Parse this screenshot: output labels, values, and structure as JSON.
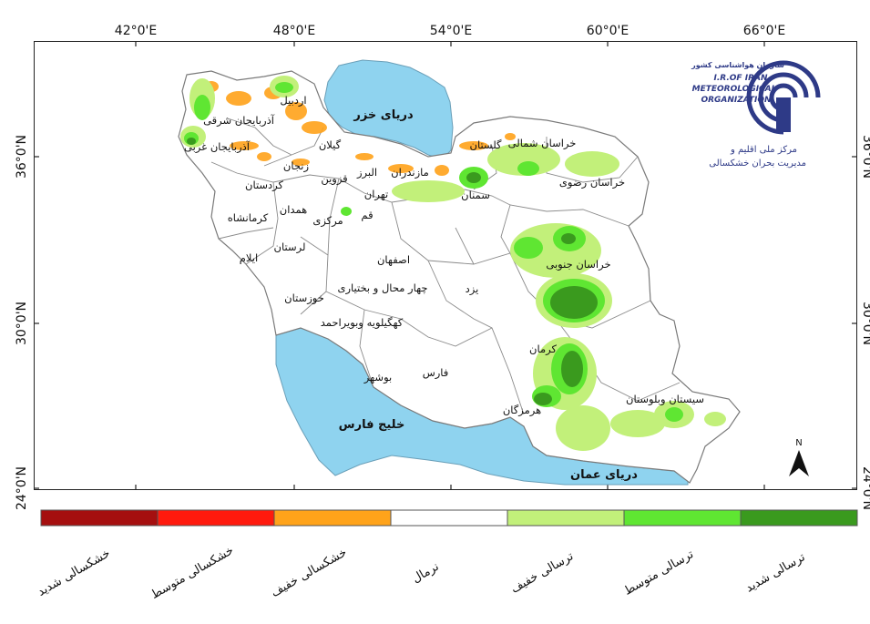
{
  "map": {
    "lon_ticks": [
      "42°0'E",
      "48°0'E",
      "54°0'E",
      "60°0'E",
      "66°0'E"
    ],
    "lat_ticks_left": [
      "36°0'N",
      "30°0'N",
      "24°0'N"
    ],
    "lat_ticks_right": [
      "36°0'N",
      "30°0'N",
      "24°0'N"
    ],
    "water_bodies": {
      "caspian": "دریای خزر",
      "persian_gulf": "خلیج فارس",
      "oman_sea": "دریای عمان"
    },
    "provinces": [
      "اردبیل",
      "آذربایجان شرقی",
      "آذربایجان غربی",
      "گیلان",
      "زنجان",
      "البرز",
      "قزوین",
      "مازندران",
      "گلستان",
      "خراسان شمالی",
      "خراسان رضوی",
      "سمنان",
      "تهران",
      "قم",
      "مرکزی",
      "همدان",
      "کرمانشاه",
      "کردستان",
      "لرستان",
      "ایلام",
      "اصفهان",
      "خوزستان",
      "چهار محال و بختیاری",
      "یزد",
      "کهگیلویه وبویراحمد",
      "خراسان جنوبی",
      "کرمان",
      "فارس",
      "بوشهر",
      "هرمزگان",
      "سیستان وبلوستان"
    ],
    "north_arrow": "N",
    "colors": {
      "water": "#8fd3ef",
      "land": "#ffffff",
      "border": "#8a8a8a"
    }
  },
  "logo": {
    "line1": "سازمان هواشناسی کشور",
    "line2": "I.R.OF IRAN",
    "line3": "METEOROLOGICAL",
    "line4": "ORGANIZATION",
    "center1": "مرکز ملی اقلیم و",
    "center2": "مدیریت بحران خشکسالی",
    "color": "#2e3a87"
  },
  "legend": [
    {
      "label": "خشکسالی شدید",
      "color": "#a50f0f"
    },
    {
      "label": "خشکسالی متوسط",
      "color": "#ff1a0d"
    },
    {
      "label": "خشکسالی خفیف",
      "color": "#ffa31a"
    },
    {
      "label": "نرمال",
      "color": "#ffffff"
    },
    {
      "label": "ترسالی خفیف",
      "color": "#c2f07a"
    },
    {
      "label": "ترسالی متوسط",
      "color": "#5fe632"
    },
    {
      "label": "ترسالی شدید",
      "color": "#3a9a1e"
    }
  ]
}
